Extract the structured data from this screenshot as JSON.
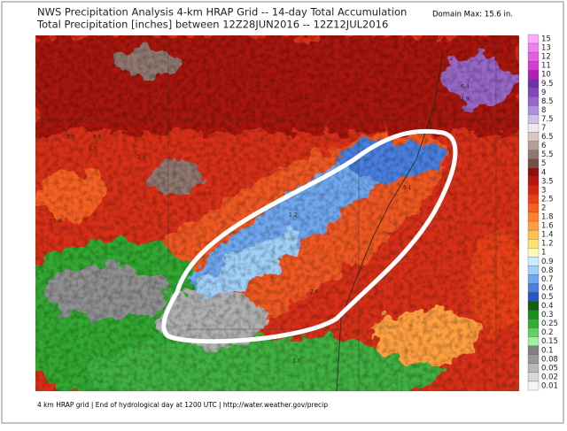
{
  "header": {
    "title": "NWS Precipitation Analysis 4-km HRAP Grid -- 14-day Total Accumulation",
    "subtitle": "Total Precipitation [inches] between 12Z28JUN2016 -- 12Z12JUL2016",
    "domain_max": "Domain Max: 15.6 in."
  },
  "legend": [
    {
      "label": "15",
      "color": "#ffa8ff"
    },
    {
      "label": "13",
      "color": "#f080f0"
    },
    {
      "label": "12",
      "color": "#e060e0"
    },
    {
      "label": "11",
      "color": "#d040d0"
    },
    {
      "label": "10",
      "color": "#b020b0"
    },
    {
      "label": "9.5",
      "color": "#7030a8"
    },
    {
      "label": "9",
      "color": "#8048b8"
    },
    {
      "label": "8.5",
      "color": "#9868c8"
    },
    {
      "label": "8",
      "color": "#b090d8"
    },
    {
      "label": "7.5",
      "color": "#d0c0e8"
    },
    {
      "label": "7",
      "color": "#f0e8f0"
    },
    {
      "label": "6.5",
      "color": "#d8c8c0"
    },
    {
      "label": "6",
      "color": "#b0a098"
    },
    {
      "label": "5.5",
      "color": "#907870"
    },
    {
      "label": "5",
      "color": "#705048"
    },
    {
      "label": "4",
      "color": "#901010"
    },
    {
      "label": "3.5",
      "color": "#b01810"
    },
    {
      "label": "3",
      "color": "#d02810"
    },
    {
      "label": "2.5",
      "color": "#e84018"
    },
    {
      "label": "2",
      "color": "#f86020"
    },
    {
      "label": "1.8",
      "color": "#ff8030"
    },
    {
      "label": "1.6",
      "color": "#ffa040"
    },
    {
      "label": "1.4",
      "color": "#ffc050"
    },
    {
      "label": "1.2",
      "color": "#ffe070"
    },
    {
      "label": "1",
      "color": "#fff8b0"
    },
    {
      "label": "0.9",
      "color": "#c8ecff"
    },
    {
      "label": "0.8",
      "color": "#a0d0f8"
    },
    {
      "label": "0.7",
      "color": "#70a8f0"
    },
    {
      "label": "0.6",
      "color": "#4880e0"
    },
    {
      "label": "0.5",
      "color": "#2858c8"
    },
    {
      "label": "0.4",
      "color": "#106010"
    },
    {
      "label": "0.3",
      "color": "#189018"
    },
    {
      "label": "0.25",
      "color": "#30b030"
    },
    {
      "label": "0.2",
      "color": "#60d060"
    },
    {
      "label": "0.15",
      "color": "#a0f0a0"
    },
    {
      "label": "0.1",
      "color": "#808080"
    },
    {
      "label": "0.08",
      "color": "#989898"
    },
    {
      "label": "0.05",
      "color": "#b8b8b8"
    },
    {
      "label": "0.02",
      "color": "#d8d8d8"
    },
    {
      "label": "0.01",
      "color": "#f4f4f4"
    }
  ],
  "map_labels": [
    "2.0",
    "1.5",
    "2.4",
    "1.4",
    "2.1",
    "0.8",
    "1.0",
    "1.2",
    "5.1",
    "6.4",
    "4.9",
    "2.6"
  ],
  "footer": "4 km HRAP grid | End of hydrological day at 1200 UTC | http://water.weather.gov/precip"
}
